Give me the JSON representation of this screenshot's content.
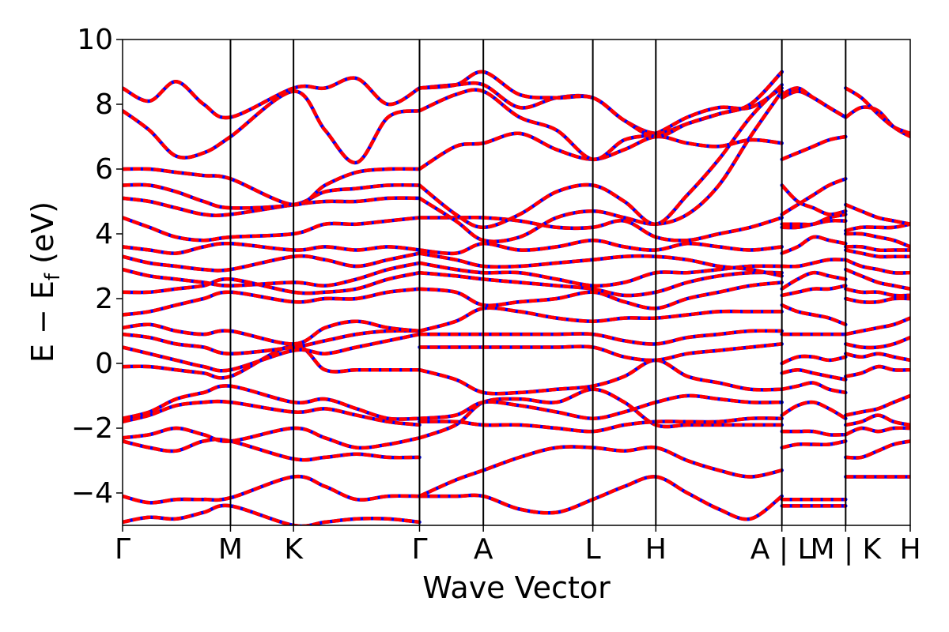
{
  "chart_data": {
    "type": "line",
    "title": "",
    "xlabel": "Wave Vector",
    "ylabel": "E − E_f (eV)",
    "ylabel_main": "E − E",
    "ylabel_sub": "f",
    "ylabel_unit": " (eV)",
    "ylim": [
      -5,
      10
    ],
    "yticks": [
      10,
      8,
      6,
      4,
      2,
      0,
      -2,
      -4
    ],
    "ytick_labels": [
      "10",
      "8",
      "6",
      "4",
      "2",
      "0",
      "−2",
      "−4"
    ],
    "xticks": [
      {
        "label": "Γ",
        "x": 0.0
      },
      {
        "label": "M",
        "x": 0.137
      },
      {
        "label": "K",
        "x": 0.217
      },
      {
        "label": "Γ",
        "x": 0.377
      },
      {
        "label": "A",
        "x": 0.458
      },
      {
        "label": "L",
        "x": 0.597
      },
      {
        "label": "H",
        "x": 0.677
      },
      {
        "label": "A | L",
        "x": 0.837
      },
      {
        "label": "M | K",
        "x": 0.918
      },
      {
        "label": "H",
        "x": 1.0
      }
    ],
    "xlim": [
      0,
      1
    ],
    "grid": false,
    "legend": "none",
    "colors": {
      "series_a": "#0000ff",
      "series_b": "#ff0000"
    },
    "segments": [
      {
        "x": [
          0.0,
          0.034,
          0.068,
          0.103,
          0.137,
          0.217,
          0.257,
          0.297,
          0.337,
          0.377
        ],
        "bands": [
          [
            -4.9,
            -4.75,
            -4.8,
            -4.6,
            -4.4,
            -5.0,
            -4.9,
            -4.8,
            -4.8,
            -4.9
          ],
          [
            -4.1,
            -4.3,
            -4.2,
            -4.2,
            -4.15,
            -3.5,
            -3.8,
            -4.2,
            -4.1,
            -4.1
          ],
          [
            -2.4,
            -2.6,
            -2.7,
            -2.4,
            -2.4,
            -2.95,
            -2.9,
            -2.8,
            -2.9,
            -2.9
          ],
          [
            -2.3,
            -2.2,
            -2.0,
            -2.2,
            -2.4,
            -2.0,
            -2.3,
            -2.6,
            -2.5,
            -2.3
          ],
          [
            -1.8,
            -1.6,
            -1.3,
            -1.2,
            -1.2,
            -1.5,
            -1.4,
            -1.6,
            -1.8,
            -1.9
          ],
          [
            -1.7,
            -1.5,
            -1.1,
            -0.9,
            -0.7,
            -1.2,
            -1.1,
            -1.4,
            -1.7,
            -1.7
          ],
          [
            -0.1,
            -0.1,
            -0.2,
            -0.3,
            -0.4,
            0.55,
            -0.2,
            -0.2,
            -0.2,
            -0.2
          ],
          [
            0.5,
            0.3,
            0.1,
            -0.1,
            -0.2,
            0.4,
            0.3,
            0.5,
            0.7,
            0.9
          ],
          [
            0.9,
            0.8,
            0.6,
            0.5,
            0.3,
            0.5,
            0.7,
            0.9,
            1.0,
            1.0
          ],
          [
            1.1,
            1.2,
            1.0,
            0.9,
            1.0,
            0.6,
            1.1,
            1.3,
            1.1,
            1.0
          ],
          [
            1.5,
            1.6,
            1.8,
            2.0,
            2.2,
            1.9,
            2.0,
            2.0,
            2.2,
            2.3
          ],
          [
            2.2,
            2.2,
            2.3,
            2.4,
            2.6,
            2.2,
            2.2,
            2.3,
            2.6,
            2.8
          ],
          [
            2.9,
            2.7,
            2.6,
            2.5,
            2.4,
            2.5,
            2.4,
            2.6,
            2.9,
            3.1
          ],
          [
            3.3,
            3.1,
            3.0,
            2.9,
            2.9,
            3.3,
            3.2,
            3.0,
            3.2,
            3.4
          ],
          [
            3.6,
            3.5,
            3.4,
            3.6,
            3.7,
            3.5,
            3.6,
            3.5,
            3.6,
            3.5
          ],
          [
            4.5,
            4.2,
            3.9,
            3.8,
            3.9,
            4.0,
            4.3,
            4.3,
            4.4,
            4.5
          ],
          [
            5.1,
            5.0,
            4.8,
            4.6,
            4.6,
            4.9,
            5.0,
            5.0,
            5.1,
            5.1
          ],
          [
            5.5,
            5.5,
            5.3,
            5.0,
            4.8,
            4.9,
            5.3,
            5.4,
            5.5,
            5.5
          ],
          [
            6.0,
            6.0,
            5.9,
            5.8,
            5.7,
            4.9,
            5.5,
            5.9,
            6.0,
            6.0
          ],
          [
            7.8,
            7.2,
            6.4,
            6.5,
            7.0,
            8.4,
            7.2,
            6.2,
            7.6,
            7.8
          ],
          [
            8.5,
            8.1,
            8.7,
            8.0,
            7.6,
            8.5,
            8.5,
            8.8,
            8.0,
            8.5
          ]
        ]
      },
      {
        "x": [
          0.377,
          0.423,
          0.458,
          0.504,
          0.551,
          0.597,
          0.637,
          0.677,
          0.717,
          0.757,
          0.797,
          0.837
        ],
        "bands": [
          [
            -4.1,
            -4.1,
            -4.1,
            -4.5,
            -4.6,
            -4.2,
            -3.8,
            -3.5,
            -4.0,
            -4.5,
            -4.8,
            -4.1
          ],
          [
            -4.1,
            -3.6,
            -3.3,
            -2.9,
            -2.6,
            -2.6,
            -2.7,
            -2.6,
            -3.0,
            -3.3,
            -3.5,
            -3.3
          ],
          [
            -2.3,
            -1.9,
            -1.2,
            -1.1,
            -1.2,
            -0.8,
            -1.2,
            -1.9,
            -1.9,
            -1.9,
            -1.9,
            -1.9
          ],
          [
            -1.8,
            -1.8,
            -1.9,
            -1.9,
            -2.0,
            -2.1,
            -1.9,
            -1.8,
            -1.8,
            -1.8,
            -1.7,
            -1.7
          ],
          [
            -1.7,
            -1.6,
            -1.2,
            -1.3,
            -1.5,
            -1.7,
            -1.5,
            -1.2,
            -1.0,
            -1.1,
            -1.2,
            -1.2
          ],
          [
            -0.2,
            -0.5,
            -0.9,
            -0.9,
            -0.8,
            -0.7,
            -0.4,
            0.1,
            -0.4,
            -0.6,
            -0.8,
            -0.8
          ],
          [
            0.5,
            0.5,
            0.5,
            0.5,
            0.5,
            0.5,
            0.2,
            0.1,
            0.3,
            0.4,
            0.5,
            0.6
          ],
          [
            0.9,
            0.9,
            0.9,
            0.9,
            0.9,
            0.9,
            0.7,
            0.6,
            0.8,
            0.9,
            1.0,
            1.0
          ],
          [
            1.0,
            1.3,
            1.7,
            1.6,
            1.4,
            1.3,
            1.4,
            1.4,
            1.5,
            1.6,
            1.6,
            1.6
          ],
          [
            2.3,
            2.2,
            1.8,
            1.9,
            2.0,
            2.2,
            1.9,
            1.7,
            2.0,
            2.2,
            2.4,
            2.5
          ],
          [
            2.8,
            2.7,
            2.6,
            2.5,
            2.4,
            2.3,
            2.1,
            2.2,
            2.5,
            2.7,
            2.8,
            2.8
          ],
          [
            3.1,
            2.9,
            2.8,
            2.8,
            2.6,
            2.4,
            2.5,
            2.8,
            2.8,
            2.9,
            3.0,
            3.0
          ],
          [
            3.4,
            3.2,
            3.0,
            3.0,
            3.1,
            3.2,
            3.3,
            3.3,
            3.2,
            3.0,
            2.9,
            2.7
          ],
          [
            3.5,
            3.4,
            3.7,
            3.5,
            3.6,
            3.8,
            3.6,
            3.5,
            3.7,
            3.6,
            3.5,
            3.6
          ],
          [
            4.5,
            4.5,
            4.5,
            4.4,
            4.2,
            4.2,
            4.4,
            3.9,
            3.8,
            4.0,
            4.2,
            4.5
          ],
          [
            5.1,
            4.4,
            3.8,
            3.9,
            4.5,
            4.7,
            4.5,
            4.3,
            4.6,
            5.5,
            7.0,
            8.4
          ],
          [
            5.5,
            4.6,
            4.2,
            4.6,
            5.3,
            5.5,
            5.0,
            4.3,
            5.2,
            6.3,
            7.6,
            8.6
          ],
          [
            6.0,
            6.7,
            6.8,
            7.1,
            6.6,
            6.3,
            6.6,
            7.0,
            6.8,
            6.7,
            6.9,
            6.8
          ],
          [
            7.8,
            8.3,
            8.4,
            7.6,
            7.2,
            6.3,
            6.9,
            7.1,
            7.6,
            7.9,
            7.9,
            8.5
          ],
          [
            8.5,
            8.6,
            8.6,
            7.9,
            8.2,
            8.2,
            7.5,
            7.1,
            7.4,
            7.7,
            8.0,
            9.0
          ],
          [
            8.5,
            8.6,
            9.0,
            8.3,
            8.2,
            8.2,
            7.5,
            7.0,
            7.4,
            7.7,
            8.0,
            9.0
          ]
        ]
      },
      {
        "x": [
          0.837,
          0.857,
          0.877,
          0.897,
          0.918
        ],
        "bands": [
          [
            -4.4,
            -4.4,
            -4.4,
            -4.4,
            -4.4
          ],
          [
            -4.2,
            -4.2,
            -4.2,
            -4.2,
            -4.2
          ],
          [
            -2.6,
            -2.5,
            -2.5,
            -2.5,
            -2.4
          ],
          [
            -2.1,
            -2.1,
            -2.1,
            -2.2,
            -2.2
          ],
          [
            -1.6,
            -1.3,
            -1.2,
            -1.4,
            -1.7
          ],
          [
            -0.8,
            -0.7,
            -0.6,
            -0.8,
            -0.9
          ],
          [
            -0.3,
            -0.2,
            -0.3,
            -0.4,
            -0.5
          ],
          [
            0.0,
            0.2,
            0.2,
            0.1,
            0.2
          ],
          [
            0.9,
            0.9,
            0.9,
            0.9,
            0.9
          ],
          [
            1.8,
            1.6,
            1.5,
            1.4,
            1.2
          ],
          [
            2.1,
            2.2,
            2.3,
            2.3,
            2.4
          ],
          [
            2.3,
            2.6,
            2.8,
            2.7,
            2.6
          ],
          [
            3.0,
            3.0,
            3.1,
            3.2,
            3.2
          ],
          [
            3.4,
            3.6,
            3.9,
            3.8,
            3.7
          ],
          [
            4.2,
            4.2,
            4.3,
            4.4,
            4.4
          ],
          [
            4.3,
            4.3,
            4.3,
            4.5,
            4.6
          ],
          [
            4.6,
            4.9,
            5.2,
            5.5,
            5.7
          ],
          [
            5.5,
            5.0,
            4.8,
            4.6,
            4.7
          ],
          [
            6.3,
            6.5,
            6.7,
            6.9,
            7.0
          ],
          [
            8.2,
            8.4,
            8.2,
            7.9,
            7.6
          ],
          [
            8.3,
            8.5,
            8.2,
            7.9,
            7.6
          ]
        ]
      },
      {
        "x": [
          0.918,
          0.938,
          0.959,
          0.979,
          1.0
        ],
        "bands": [
          [
            -3.5,
            -3.5,
            -3.5,
            -3.5,
            -3.5
          ],
          [
            -2.9,
            -2.9,
            -2.7,
            -2.5,
            -2.4
          ],
          [
            -2.2,
            -2.0,
            -2.1,
            -2.0,
            -2.0
          ],
          [
            -1.9,
            -1.8,
            -1.6,
            -1.8,
            -1.9
          ],
          [
            -1.6,
            -1.5,
            -1.4,
            -1.2,
            -1.0
          ],
          [
            -0.4,
            -0.3,
            -0.1,
            -0.2,
            -0.2
          ],
          [
            0.3,
            0.2,
            0.3,
            0.2,
            0.1
          ],
          [
            0.6,
            0.5,
            0.5,
            0.6,
            0.8
          ],
          [
            0.9,
            1.0,
            1.1,
            1.2,
            1.4
          ],
          [
            2.0,
            1.9,
            1.9,
            2.0,
            2.0
          ],
          [
            2.3,
            2.2,
            2.2,
            2.1,
            2.1
          ],
          [
            2.9,
            2.7,
            2.5,
            2.4,
            2.3
          ],
          [
            3.2,
            3.0,
            2.9,
            2.8,
            2.8
          ],
          [
            3.5,
            3.4,
            3.3,
            3.3,
            3.3
          ],
          [
            3.6,
            3.6,
            3.5,
            3.5,
            3.5
          ],
          [
            4.0,
            4.0,
            3.9,
            3.8,
            3.6
          ],
          [
            4.1,
            4.2,
            4.2,
            4.2,
            4.3
          ],
          [
            4.9,
            4.7,
            4.5,
            4.4,
            4.3
          ],
          [
            7.6,
            7.9,
            7.8,
            7.3,
            7.0
          ],
          [
            8.5,
            8.2,
            7.7,
            7.3,
            7.1
          ]
        ]
      }
    ]
  }
}
